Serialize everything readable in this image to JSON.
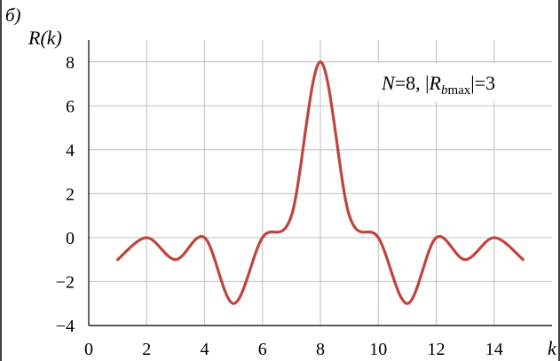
{
  "panel_label": "б)",
  "legend_box": {
    "n_label": "N",
    "n_value": "=8, |",
    "r_label": "R",
    "r_sub": "b",
    "r_sub2": "max",
    "r_value": "|=3"
  },
  "colors": {
    "curve": "#c0443c",
    "grid": "#c8c8c8",
    "axis": "#000000",
    "text": "#000000"
  },
  "chart_data": {
    "type": "line",
    "ylabel": "R(k)",
    "xlabel": "k",
    "xlim": [
      0,
      16
    ],
    "ylim": [
      -4,
      9
    ],
    "x_ticks": [
      0,
      2,
      4,
      6,
      8,
      10,
      12,
      14
    ],
    "x_tick_labels": [
      "0",
      "2",
      "4",
      "6",
      "8",
      "10",
      "12",
      "14"
    ],
    "y_ticks": [
      -4,
      -2,
      0,
      2,
      4,
      6,
      8
    ],
    "y_tick_labels": [
      "−4",
      "−2",
      "0",
      "2",
      "4",
      "6",
      "8"
    ],
    "grid": true,
    "series": [
      {
        "name": "",
        "x": [
          1,
          2,
          3,
          4,
          5,
          6,
          7,
          8,
          9,
          10,
          11,
          12,
          13,
          14,
          15
        ],
        "y": [
          -1,
          0,
          -1,
          0,
          -3,
          0,
          1,
          8,
          1,
          0,
          -3,
          0,
          -1,
          0,
          -1
        ]
      }
    ]
  }
}
